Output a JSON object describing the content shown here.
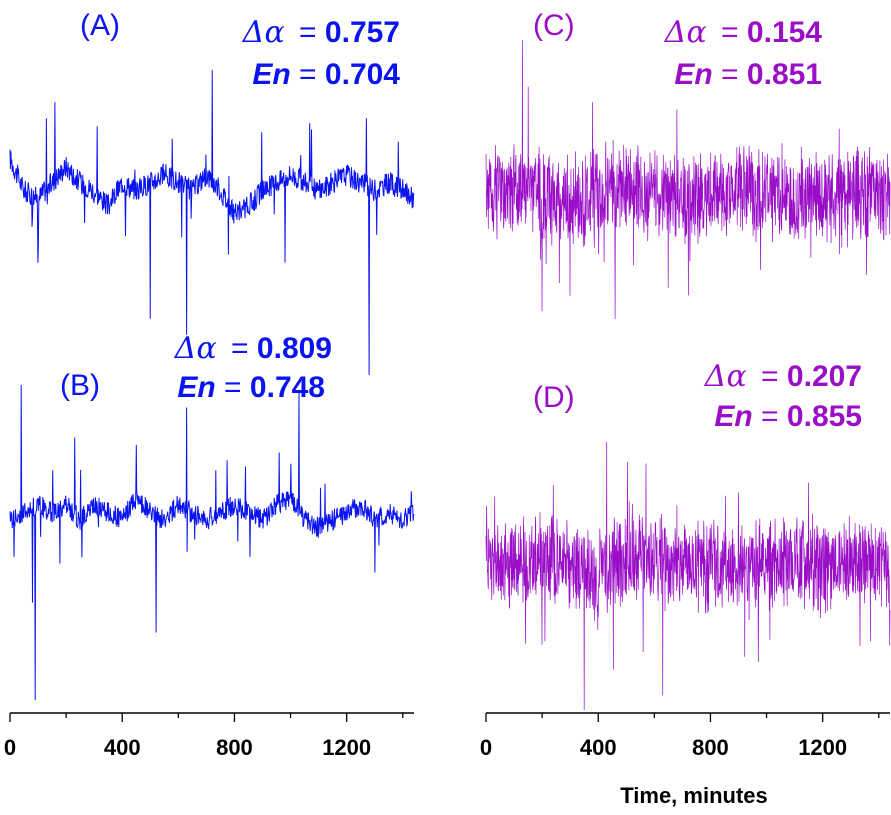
{
  "colors": {
    "blue": "#0a14f0",
    "purple": "#9a0ec8",
    "axis": "#000000"
  },
  "x_axis": {
    "title": "Time, minutes",
    "ticks": [
      0,
      400,
      800,
      1200
    ],
    "tick_labels": [
      "0",
      "400",
      "800",
      "1200"
    ],
    "range": [
      0,
      1440
    ]
  },
  "chart_data": [
    {
      "type": "line",
      "id": "A",
      "label": "(A)",
      "color": "#0a14f0",
      "delta_symbol": "Δα",
      "delta_value": "0.757",
      "en_symbol": "En",
      "en_value": "0.704",
      "xlim": [
        0,
        1440
      ],
      "ylim": [
        -1.15,
        1.0
      ],
      "x": [
        0,
        50,
        100,
        150,
        200,
        250,
        300,
        350,
        400,
        450,
        500,
        550,
        600,
        650,
        700,
        750,
        800,
        850,
        900,
        950,
        1000,
        1050,
        1100,
        1150,
        1200,
        1250,
        1300,
        1350,
        1400,
        1440
      ],
      "y": [
        0.2,
        0.0,
        -0.05,
        0.05,
        0.15,
        0.05,
        0.0,
        -0.1,
        0.05,
        0.0,
        0.05,
        0.1,
        0.05,
        0.0,
        0.1,
        0.0,
        -0.15,
        -0.1,
        0.0,
        0.05,
        0.1,
        0.05,
        0.0,
        0.05,
        0.1,
        0.05,
        0.0,
        0.05,
        0.0,
        -0.05
      ],
      "peaks": [
        [
          160,
          0.55
        ],
        [
          500,
          0.8
        ],
        [
          720,
          0.75
        ],
        [
          130,
          0.45
        ],
        [
          1270,
          0.45
        ],
        [
          310,
          0.4
        ]
      ],
      "dips": [
        [
          500,
          -0.8
        ],
        [
          630,
          -0.9
        ],
        [
          1280,
          -1.15
        ],
        [
          100,
          -0.45
        ],
        [
          980,
          -0.45
        ]
      ]
    },
    {
      "type": "line",
      "id": "B",
      "label": "(B)",
      "color": "#0a14f0",
      "delta_symbol": "Δα",
      "delta_value": "0.809",
      "en_symbol": "En",
      "en_value": "0.748",
      "xlim": [
        0,
        1440
      ],
      "ylim": [
        -1.2,
        1.0
      ],
      "x": [
        0,
        50,
        100,
        150,
        200,
        250,
        300,
        350,
        400,
        450,
        500,
        550,
        600,
        650,
        700,
        750,
        800,
        850,
        900,
        950,
        1000,
        1050,
        1100,
        1150,
        1200,
        1250,
        1300,
        1350,
        1400,
        1440
      ],
      "y": [
        0.0,
        0.05,
        0.1,
        0.05,
        0.1,
        0.0,
        0.1,
        0.05,
        0.0,
        0.15,
        0.05,
        0.0,
        0.1,
        0.05,
        0.0,
        0.05,
        0.1,
        0.05,
        0.0,
        0.1,
        0.15,
        0.0,
        -0.05,
        0.0,
        0.05,
        0.1,
        0.0,
        0.05,
        0.0,
        0.05
      ],
      "peaks": [
        [
          40,
          0.9
        ],
        [
          230,
          0.55
        ],
        [
          630,
          0.75
        ],
        [
          1030,
          0.85
        ],
        [
          960,
          0.45
        ],
        [
          450,
          0.5
        ]
      ],
      "dips": [
        [
          90,
          -1.2
        ],
        [
          520,
          -0.75
        ],
        [
          80,
          -0.55
        ],
        [
          1300,
          -0.35
        ]
      ]
    },
    {
      "type": "line",
      "id": "C",
      "label": "(C)",
      "color": "#9a0ec8",
      "delta_symbol": "Δα",
      "delta_value": "0.154",
      "en_symbol": "En",
      "en_value": "0.851",
      "xlim": [
        0,
        1440
      ],
      "ylim": [
        -1.0,
        1.0
      ],
      "noise_amp": 0.28,
      "x": [
        0,
        100,
        200,
        300,
        400,
        500,
        600,
        700,
        800,
        900,
        1000,
        1100,
        1200,
        1300,
        1440
      ],
      "y": [
        0.0,
        0.05,
        0.0,
        -0.05,
        0.0,
        0.05,
        0.0,
        -0.05,
        0.0,
        0.05,
        0.0,
        -0.05,
        0.0,
        0.0,
        0.0
      ],
      "peaks": [
        [
          130,
          1.0
        ],
        [
          150,
          0.7
        ],
        [
          380,
          0.6
        ],
        [
          680,
          0.55
        ]
      ],
      "dips": [
        [
          200,
          -0.75
        ],
        [
          300,
          -0.65
        ],
        [
          460,
          -0.8
        ],
        [
          650,
          -0.6
        ]
      ]
    },
    {
      "type": "line",
      "id": "D",
      "label": "(D)",
      "color": "#9a0ec8",
      "delta_symbol": "Δα",
      "delta_value": "0.207",
      "en_symbol": "En",
      "en_value": "0.855",
      "xlim": [
        0,
        1440
      ],
      "ylim": [
        -1.0,
        1.0
      ],
      "noise_amp": 0.3,
      "x": [
        0,
        100,
        200,
        300,
        400,
        500,
        600,
        700,
        800,
        900,
        1000,
        1100,
        1200,
        1300,
        1440
      ],
      "y": [
        0.0,
        0.0,
        0.05,
        0.0,
        -0.05,
        0.0,
        0.05,
        0.0,
        0.0,
        -0.05,
        0.0,
        0.05,
        0.0,
        0.0,
        0.0
      ],
      "peaks": [
        [
          430,
          0.85
        ],
        [
          570,
          0.7
        ],
        [
          240,
          0.55
        ],
        [
          900,
          0.5
        ]
      ],
      "dips": [
        [
          350,
          -1.0
        ],
        [
          630,
          -0.9
        ],
        [
          560,
          -0.6
        ],
        [
          200,
          -0.55
        ]
      ]
    }
  ]
}
